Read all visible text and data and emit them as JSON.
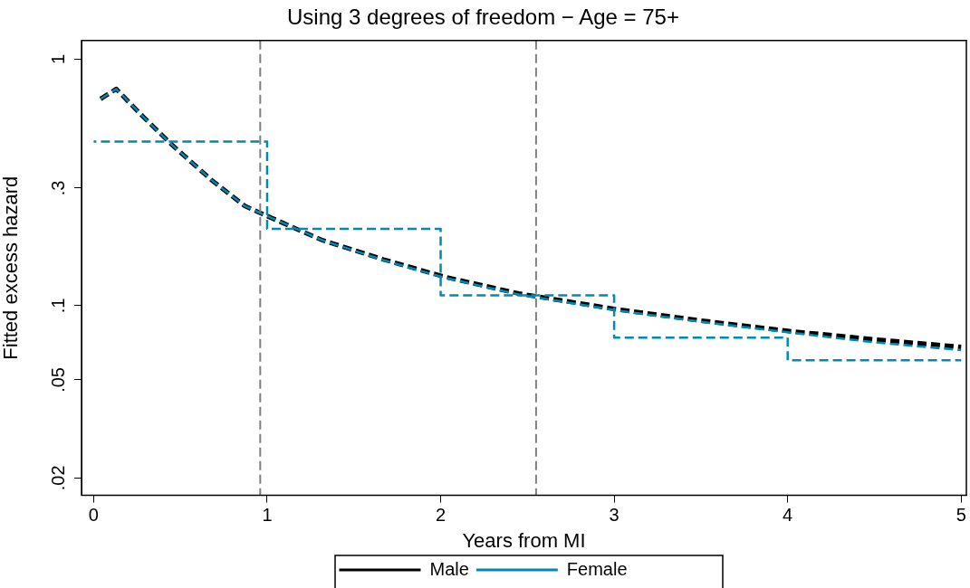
{
  "chart_data": {
    "type": "line",
    "title": "Using 3 degrees of freedom − Age = 75+",
    "xlabel": "Years from MI",
    "ylabel": "Fitted excess hazard",
    "log": "y",
    "xlim": [
      -0.07,
      5.03
    ],
    "xticks": [
      0,
      1,
      2,
      3,
      4,
      5
    ],
    "ylim": [
      0.017,
      1.19
    ],
    "yticks": [
      {
        "value": 0.02,
        "label": ".02"
      },
      {
        "value": 0.05,
        "label": ".05"
      },
      {
        "value": 0.1,
        "label": ".1"
      },
      {
        "value": 0.3,
        "label": ".3"
      },
      1
    ],
    "grid": false,
    "legend": "bottom",
    "line_style": "dashed",
    "marker": "none",
    "ref_lines": [
      {
        "axis": "x",
        "value": 0.96,
        "color": "#808080",
        "line_style": "dashed"
      },
      {
        "axis": "x",
        "value": 2.55,
        "color": "#808080",
        "line_style": "dashed"
      }
    ],
    "series": [
      {
        "name": "Male",
        "color": "#000000",
        "x": [
          0.04,
          0.13,
          0.28,
          0.45,
          0.68,
          0.87,
          0.97,
          1.32,
          1.67,
          2.02,
          2.45,
          3,
          3.5,
          4,
          4.5,
          5
        ],
        "values": [
          0.69,
          0.757,
          0.589,
          0.45,
          0.323,
          0.254,
          0.236,
          0.184,
          0.154,
          0.131,
          0.112,
          0.097,
          0.087,
          0.079,
          0.073,
          0.068
        ]
      },
      {
        "name": "Female",
        "color": "#0089b8",
        "x": [
          0.04,
          0.13,
          0.28,
          0.45,
          0.68,
          0.87,
          0.97,
          1.32,
          1.67,
          2.02,
          2.45,
          3,
          3.5,
          4,
          4.5,
          5
        ],
        "values": [
          0.69,
          0.757,
          0.589,
          0.45,
          0.323,
          0.254,
          0.236,
          0.184,
          0.153,
          0.13,
          0.111,
          0.096,
          0.086,
          0.078,
          0.071,
          0.066
        ]
      },
      {
        "type": "step",
        "color": "#0089b8",
        "x": [
          0,
          1,
          2,
          3,
          4,
          5
        ],
        "values": [
          0.463,
          0.205,
          0.11,
          0.0742,
          0.06,
          0.06
        ]
      }
    ]
  }
}
